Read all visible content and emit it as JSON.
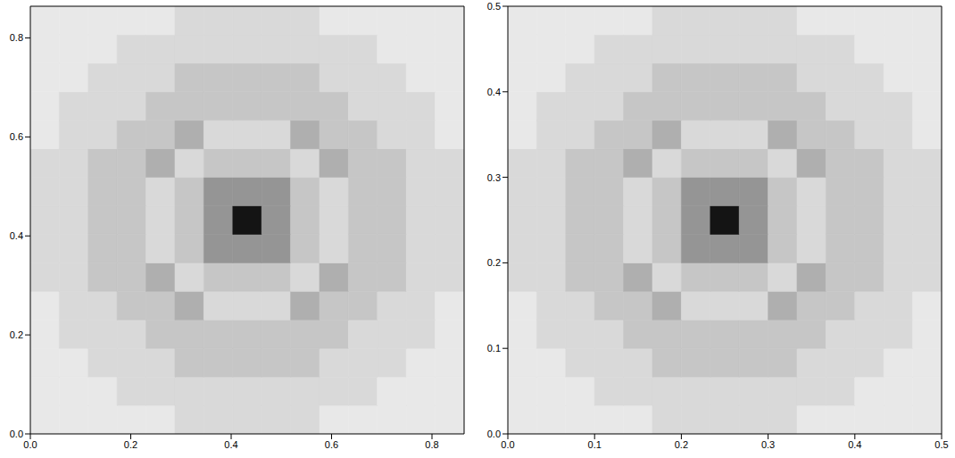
{
  "chart_data": [
    {
      "type": "heatmap",
      "xlim": [
        0,
        0.864
      ],
      "ylim": [
        0,
        0.864
      ],
      "xticks": [
        {
          "value": 0,
          "label": "0.0"
        },
        {
          "value": 0.2,
          "label": "0.2"
        },
        {
          "value": 0.4,
          "label": "0.4"
        },
        {
          "value": 0.6,
          "label": "0.6"
        },
        {
          "value": 0.8,
          "label": "0.8"
        }
      ],
      "yticks": [
        {
          "value": 0,
          "label": "0.0"
        },
        {
          "value": 0.2,
          "label": "0.2"
        },
        {
          "value": 0.4,
          "label": "0.4"
        },
        {
          "value": 0.6,
          "label": "0.6"
        },
        {
          "value": 0.8,
          "label": "0.8"
        }
      ],
      "zlim": [
        0,
        9
      ],
      "cells": [
        [
          1,
          1,
          1,
          1,
          1,
          2,
          2,
          2,
          2,
          2,
          1,
          1,
          1,
          1,
          1
        ],
        [
          1,
          1,
          1,
          2,
          2,
          2,
          2,
          2,
          2,
          2,
          2,
          2,
          1,
          1,
          1
        ],
        [
          1,
          1,
          2,
          2,
          2,
          3,
          3,
          3,
          3,
          3,
          2,
          2,
          2,
          1,
          1
        ],
        [
          1,
          2,
          2,
          2,
          3,
          3,
          3,
          3,
          3,
          3,
          3,
          2,
          2,
          2,
          1
        ],
        [
          1,
          2,
          2,
          3,
          3,
          4,
          2,
          2,
          2,
          4,
          3,
          3,
          2,
          2,
          1
        ],
        [
          2,
          2,
          3,
          3,
          4,
          2,
          3,
          3,
          3,
          2,
          4,
          3,
          3,
          2,
          2
        ],
        [
          2,
          2,
          3,
          3,
          2,
          3,
          5,
          5,
          5,
          3,
          2,
          3,
          3,
          2,
          2
        ],
        [
          2,
          2,
          3,
          3,
          2,
          3,
          5,
          9,
          5,
          3,
          2,
          3,
          3,
          2,
          2
        ],
        [
          2,
          2,
          3,
          3,
          2,
          3,
          5,
          5,
          5,
          3,
          2,
          3,
          3,
          2,
          2
        ],
        [
          2,
          2,
          3,
          3,
          4,
          2,
          3,
          3,
          3,
          2,
          4,
          3,
          3,
          2,
          2
        ],
        [
          1,
          2,
          2,
          3,
          3,
          4,
          2,
          2,
          2,
          4,
          3,
          3,
          2,
          2,
          1
        ],
        [
          1,
          2,
          2,
          2,
          3,
          3,
          3,
          3,
          3,
          3,
          3,
          2,
          2,
          2,
          1
        ],
        [
          1,
          1,
          2,
          2,
          2,
          3,
          3,
          3,
          3,
          3,
          2,
          2,
          2,
          1,
          1
        ],
        [
          1,
          1,
          1,
          2,
          2,
          2,
          2,
          2,
          2,
          2,
          2,
          2,
          1,
          1,
          1
        ],
        [
          1,
          1,
          1,
          1,
          1,
          2,
          2,
          2,
          2,
          2,
          1,
          1,
          1,
          1,
          1
        ]
      ]
    },
    {
      "type": "heatmap",
      "xlim": [
        0,
        0.5
      ],
      "ylim": [
        0,
        0.5
      ],
      "xticks": [
        {
          "value": 0,
          "label": "0.0"
        },
        {
          "value": 0.1,
          "label": "0.1"
        },
        {
          "value": 0.2,
          "label": "0.2"
        },
        {
          "value": 0.3,
          "label": "0.3"
        },
        {
          "value": 0.4,
          "label": "0.4"
        },
        {
          "value": 0.5,
          "label": "0.5"
        }
      ],
      "yticks": [
        {
          "value": 0,
          "label": "0.0"
        },
        {
          "value": 0.1,
          "label": "0.1"
        },
        {
          "value": 0.2,
          "label": "0.2"
        },
        {
          "value": 0.3,
          "label": "0.3"
        },
        {
          "value": 0.4,
          "label": "0.4"
        },
        {
          "value": 0.5,
          "label": "0.5"
        }
      ],
      "zlim": [
        0,
        9
      ],
      "cells": [
        [
          1,
          1,
          1,
          1,
          1,
          2,
          2,
          2,
          2,
          2,
          1,
          1,
          1,
          1,
          1
        ],
        [
          1,
          1,
          1,
          2,
          2,
          2,
          2,
          2,
          2,
          2,
          2,
          2,
          1,
          1,
          1
        ],
        [
          1,
          1,
          2,
          2,
          2,
          3,
          3,
          3,
          3,
          3,
          2,
          2,
          2,
          1,
          1
        ],
        [
          1,
          2,
          2,
          2,
          3,
          3,
          3,
          3,
          3,
          3,
          3,
          2,
          2,
          2,
          1
        ],
        [
          1,
          2,
          2,
          3,
          3,
          4,
          2,
          2,
          2,
          4,
          3,
          3,
          2,
          2,
          1
        ],
        [
          2,
          2,
          3,
          3,
          4,
          2,
          3,
          3,
          3,
          2,
          4,
          3,
          3,
          2,
          2
        ],
        [
          2,
          2,
          3,
          3,
          2,
          3,
          5,
          5,
          5,
          3,
          2,
          3,
          3,
          2,
          2
        ],
        [
          2,
          2,
          3,
          3,
          2,
          3,
          5,
          9,
          5,
          3,
          2,
          3,
          3,
          2,
          2
        ],
        [
          2,
          2,
          3,
          3,
          2,
          3,
          5,
          5,
          5,
          3,
          2,
          3,
          3,
          2,
          2
        ],
        [
          2,
          2,
          3,
          3,
          4,
          2,
          3,
          3,
          3,
          2,
          4,
          3,
          3,
          2,
          2
        ],
        [
          1,
          2,
          2,
          3,
          3,
          4,
          2,
          2,
          2,
          4,
          3,
          3,
          2,
          2,
          1
        ],
        [
          1,
          2,
          2,
          2,
          3,
          3,
          3,
          3,
          3,
          3,
          3,
          2,
          2,
          2,
          1
        ],
        [
          1,
          1,
          2,
          2,
          2,
          3,
          3,
          3,
          3,
          3,
          2,
          2,
          2,
          1,
          1
        ],
        [
          1,
          1,
          1,
          2,
          2,
          2,
          2,
          2,
          2,
          2,
          2,
          2,
          1,
          1,
          1
        ],
        [
          1,
          1,
          1,
          1,
          1,
          2,
          2,
          2,
          2,
          2,
          1,
          1,
          1,
          1,
          1
        ]
      ]
    }
  ]
}
